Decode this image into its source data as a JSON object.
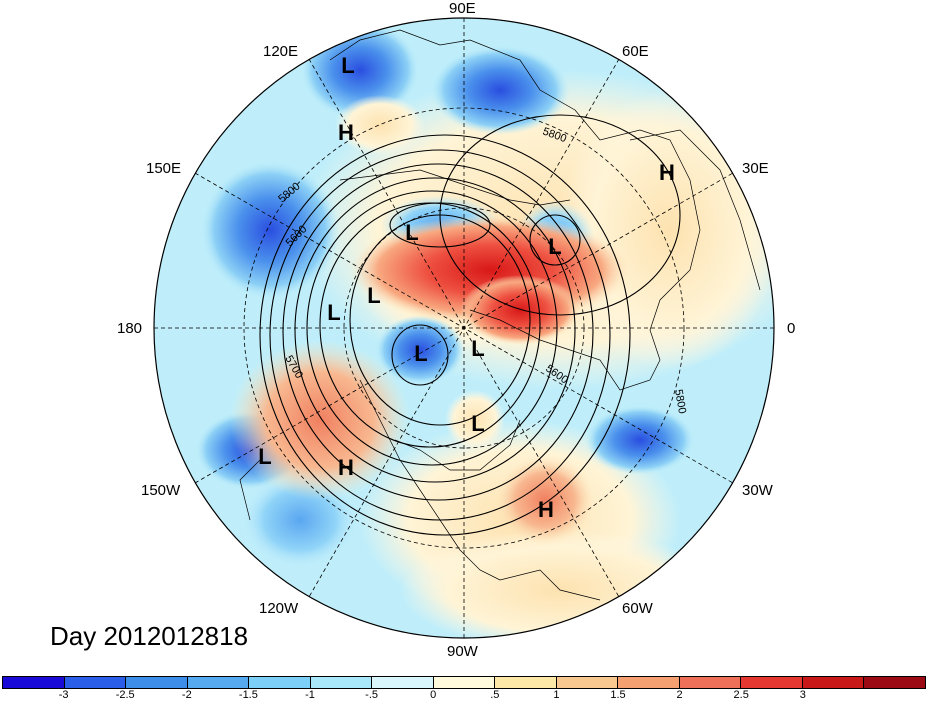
{
  "title": "Day 2012012818",
  "map": {
    "projection": "north-polar-stereographic",
    "longitude_labels": [
      "90E",
      "60E",
      "30E",
      "0",
      "30W",
      "60W",
      "90W",
      "120W",
      "150W",
      "180",
      "150E",
      "120E"
    ],
    "contour_labels": [
      "5800",
      "5800",
      "5600",
      "5700",
      "5600",
      "5800"
    ],
    "systems": [
      {
        "label": "L"
      },
      {
        "label": "H"
      },
      {
        "label": "H"
      },
      {
        "label": "L"
      },
      {
        "label": "L"
      },
      {
        "label": "L"
      },
      {
        "label": "L"
      },
      {
        "label": "L"
      },
      {
        "label": "L"
      },
      {
        "label": "L"
      },
      {
        "label": "H"
      },
      {
        "label": "L"
      },
      {
        "label": "H"
      }
    ]
  },
  "colorbar": {
    "colors": [
      "#1a0ad8",
      "#2a5ee8",
      "#3c8ee8",
      "#56aaf0",
      "#7cd0f8",
      "#a8e8fa",
      "#d8f6fc",
      "#fffadc",
      "#fde8a8",
      "#f8c890",
      "#f4a070",
      "#ee7058",
      "#e43830",
      "#c81818",
      "#9c0a14"
    ],
    "labels": [
      "-3",
      "-2.5",
      "-2",
      "-1.5",
      "-1",
      "-.5",
      "0",
      ".5",
      "1",
      "1.5",
      "2",
      "2.5",
      "3"
    ]
  }
}
